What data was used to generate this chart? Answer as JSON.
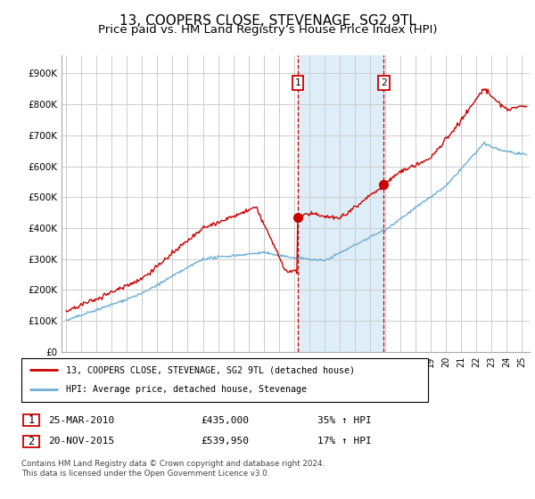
{
  "title": "13, COOPERS CLOSE, STEVENAGE, SG2 9TL",
  "subtitle": "Price paid vs. HM Land Registry’s House Price Index (HPI)",
  "ylabel_ticks": [
    "£0",
    "£100K",
    "£200K",
    "£300K",
    "£400K",
    "£500K",
    "£600K",
    "£700K",
    "£800K",
    "£900K"
  ],
  "ytick_values": [
    0,
    100000,
    200000,
    300000,
    400000,
    500000,
    600000,
    700000,
    800000,
    900000
  ],
  "ylim": [
    0,
    960000
  ],
  "xlim_start": 1994.7,
  "xlim_end": 2025.5,
  "sale1_date": 2010.23,
  "sale1_price": 435000,
  "sale2_date": 2015.9,
  "sale2_price": 539950,
  "line_color_property": "#cc0000",
  "line_color_hpi": "#6baed6",
  "shaded_color": "#ddeef8",
  "dashed_color": "#cc0000",
  "grid_color": "#cccccc",
  "background_color": "#ffffff",
  "legend_line1": "13, COOPERS CLOSE, STEVENAGE, SG2 9TL (detached house)",
  "legend_line2": "HPI: Average price, detached house, Stevenage",
  "footnote": "Contains HM Land Registry data © Crown copyright and database right 2024.\nThis data is licensed under the Open Government Licence v3.0.",
  "title_fontsize": 11,
  "subtitle_fontsize": 9.5
}
